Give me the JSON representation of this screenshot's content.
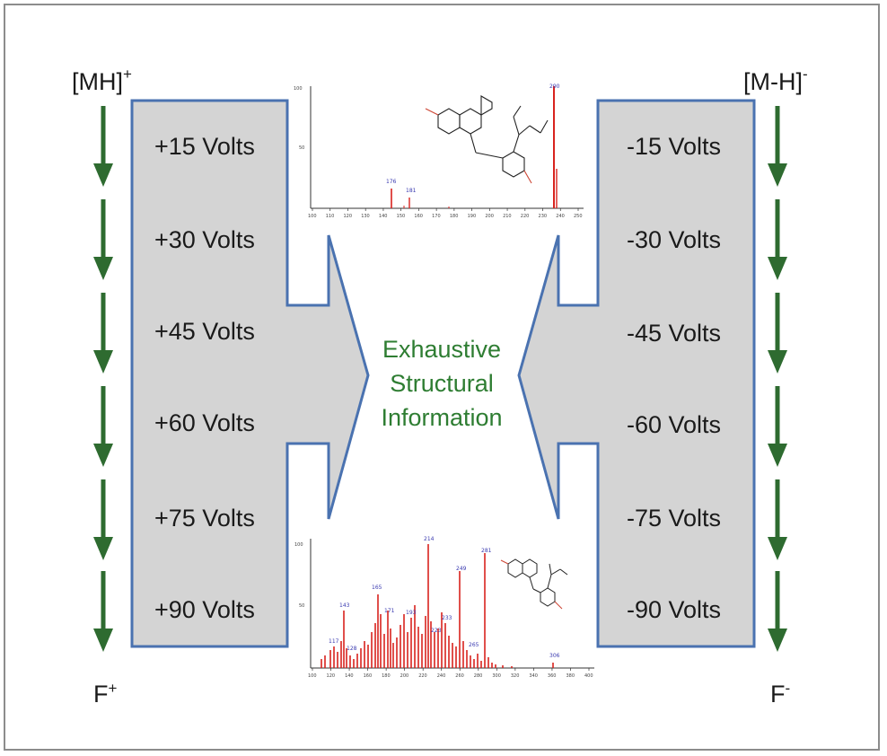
{
  "left_header": {
    "base": "[MH]",
    "sup": "+"
  },
  "right_header": {
    "base": "[M-H]",
    "sup": "-"
  },
  "left_footer": {
    "base": "F",
    "sup": "+"
  },
  "right_footer": {
    "base": "F",
    "sup": "-"
  },
  "left_voltages": [
    "+15 Volts",
    "+30 Volts",
    "+45 Volts",
    "+60 Volts",
    "+75 Volts",
    "+90 Volts"
  ],
  "right_voltages": [
    "-15 Volts",
    "-30 Volts",
    "-45 Volts",
    "-60 Volts",
    "-75 Volts",
    "-90 Volts"
  ],
  "center_text": [
    "Exhaustive",
    "Structural",
    "Information"
  ],
  "colors": {
    "panel_fill": "#d4d4d4",
    "panel_stroke": "#4a72b0",
    "arrow": "#2e6b30",
    "text_green": "#2e7d32",
    "spectrum": "#d8231e"
  },
  "top_spectrum": {
    "y_ticks": [
      "100",
      "50"
    ],
    "x_ticks": [
      "100",
      "110",
      "120",
      "130",
      "140",
      "150",
      "160",
      "170",
      "180",
      "190",
      "200",
      "210",
      "220",
      "230",
      "240",
      "250"
    ],
    "peak_labels": [
      "176",
      "181",
      "290"
    ]
  },
  "bottom_spectrum": {
    "y_ticks": [
      "100",
      "50"
    ],
    "x_ticks": [
      "100",
      "120",
      "140",
      "160",
      "180",
      "200",
      "220",
      "240",
      "260",
      "280",
      "300",
      "320",
      "340",
      "360",
      "380",
      "400"
    ],
    "peak_labels": [
      "117",
      "128",
      "143",
      "165",
      "171",
      "193",
      "214",
      "223",
      "233",
      "249",
      "265",
      "281",
      "306"
    ]
  }
}
